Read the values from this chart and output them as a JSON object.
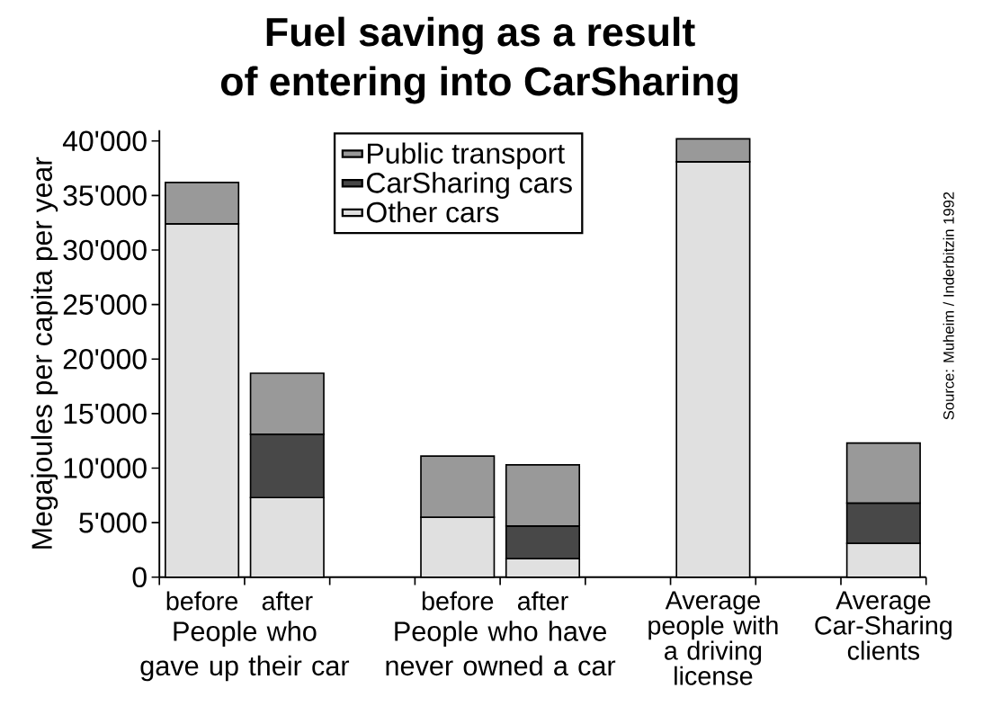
{
  "chart_data": {
    "type": "bar",
    "title": "Fuel saving as a result of entering into CarSharing",
    "ylabel": "Megajoules per capita per year",
    "categories": [
      "before",
      "after",
      null,
      "before",
      "after",
      null,
      "Average people with a driving license",
      null,
      "Average Car-Sharing clients"
    ],
    "stacked": true,
    "series": [
      {
        "name": "Other cars",
        "color": "#e0e0e0",
        "values": [
          32400,
          7300,
          null,
          5500,
          1700,
          null,
          38100,
          null,
          3100
        ]
      },
      {
        "name": "CarSharing cars",
        "color": "#484848",
        "values": [
          null,
          5800,
          null,
          null,
          3000,
          null,
          null,
          null,
          3700
        ]
      },
      {
        "name": "Public transport",
        "color": "#999999",
        "values": [
          3800,
          5600,
          null,
          5600,
          5600,
          null,
          2100,
          null,
          5500
        ]
      }
    ],
    "ylim": [
      0,
      41000
    ],
    "yticks": [
      0,
      {
        "value": 5000,
        "label": "5'000"
      },
      {
        "value": 10000,
        "label": "10'000"
      },
      {
        "value": 15000,
        "label": "15'000"
      },
      {
        "value": 20000,
        "label": "20'000"
      },
      {
        "value": 25000,
        "label": "25'000"
      },
      {
        "value": 30000,
        "label": "30'000"
      },
      {
        "value": 35000,
        "label": "35'000"
      },
      {
        "value": 40000,
        "label": "40'000"
      }
    ],
    "legend": "top",
    "annotations": [
      "People who gave up their car",
      "People who have never owned a car",
      "Source: Muheim / Inderbitzin 1992"
    ]
  }
}
